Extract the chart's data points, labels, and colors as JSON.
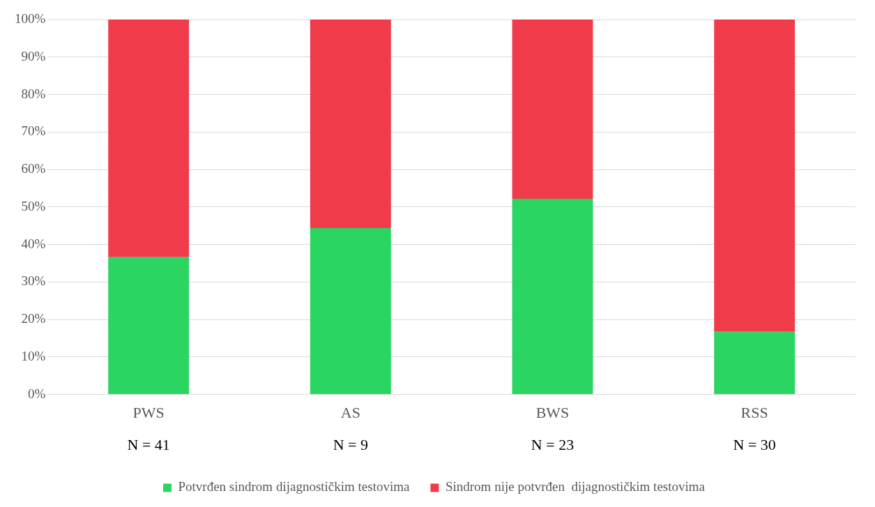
{
  "chart_data": {
    "type": "bar",
    "stacked": true,
    "categories": [
      "PWS",
      "AS",
      "BWS",
      "RSS"
    ],
    "series": [
      {
        "name": "Potvrđen sindrom dijagnostičkim testovima",
        "color": "#2bd561",
        "values": [
          36.6,
          44.4,
          52.2,
          16.7
        ]
      },
      {
        "name": "Sindrom nije potvrđen  dijagnostičkim testovima",
        "color": "#ef3b4a",
        "values": [
          63.4,
          55.6,
          47.8,
          83.3
        ]
      }
    ],
    "ylim": [
      0,
      100
    ],
    "yticks": [
      {
        "value": 0,
        "label": "0%"
      },
      {
        "value": 10,
        "label": "10%"
      },
      {
        "value": 20,
        "label": "20%"
      },
      {
        "value": 30,
        "label": "30%"
      },
      {
        "value": 40,
        "label": "40%"
      },
      {
        "value": 50,
        "label": "50%"
      },
      {
        "value": 60,
        "label": "60%"
      },
      {
        "value": 70,
        "label": "70%"
      },
      {
        "value": 80,
        "label": "80%"
      },
      {
        "value": 90,
        "label": "90%"
      },
      {
        "value": 100,
        "label": "100%"
      }
    ],
    "grid": "y",
    "legend": "bottom",
    "marker": "square",
    "annotations": [
      "N = 41",
      "N = 9",
      "N = 23",
      "N = 30"
    ]
  }
}
